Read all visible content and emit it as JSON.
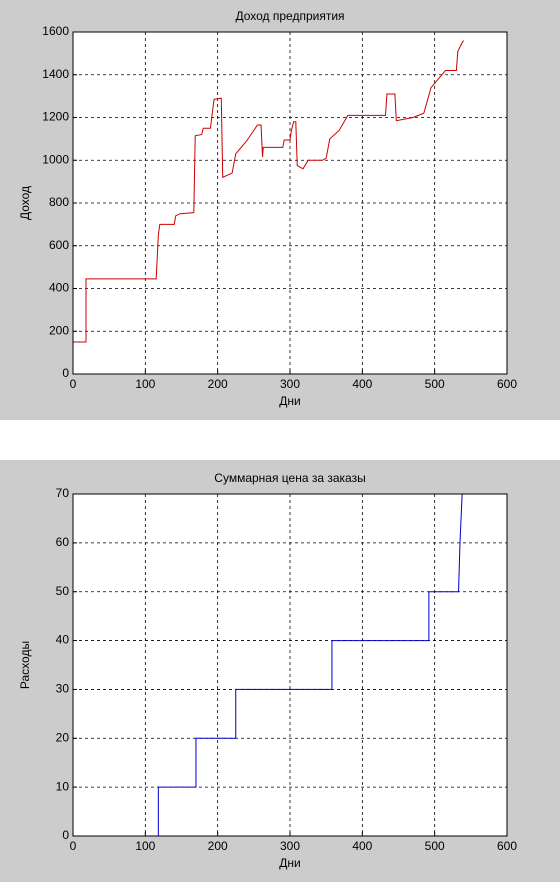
{
  "chart_data": [
    {
      "type": "line",
      "title": "Доход предприятия",
      "xlabel": "Дни",
      "ylabel": "Доход",
      "color": "#cc0000",
      "grid": true,
      "xlim": [
        0,
        600
      ],
      "xticks": [
        0,
        100,
        200,
        300,
        400,
        500,
        600
      ],
      "ylim": [
        0,
        1600
      ],
      "yticks": [
        0,
        200,
        400,
        600,
        800,
        1000,
        1200,
        1400,
        1600
      ],
      "x": [
        0,
        18,
        18,
        115,
        118,
        120,
        140,
        142,
        148,
        167,
        169,
        178,
        180,
        190,
        195,
        205,
        207,
        220,
        225,
        240,
        255,
        260,
        262,
        263,
        290,
        292,
        300,
        302,
        305,
        308,
        310,
        318,
        325,
        345,
        350,
        355,
        368,
        380,
        432,
        434,
        445,
        447,
        470,
        485,
        490,
        495,
        505,
        515,
        530,
        532,
        538,
        540
      ],
      "values": [
        150,
        150,
        445,
        445,
        650,
        700,
        700,
        740,
        750,
        755,
        1115,
        1120,
        1150,
        1150,
        1285,
        1290,
        920,
        940,
        1030,
        1090,
        1165,
        1165,
        1015,
        1060,
        1060,
        1095,
        1095,
        1140,
        1180,
        1180,
        975,
        960,
        1000,
        1000,
        1010,
        1100,
        1140,
        1210,
        1210,
        1310,
        1310,
        1185,
        1200,
        1220,
        1280,
        1340,
        1380,
        1420,
        1420,
        1510,
        1550,
        1560
      ]
    },
    {
      "type": "line",
      "title": "Суммарная цена за заказы",
      "xlabel": "Дни",
      "ylabel": "Расходы",
      "color": "#0000cc",
      "grid": true,
      "xlim": [
        0,
        600
      ],
      "xticks": [
        0,
        100,
        200,
        300,
        400,
        500,
        600
      ],
      "ylim": [
        0,
        70
      ],
      "yticks": [
        0,
        10,
        20,
        30,
        40,
        50,
        60,
        70
      ],
      "x": [
        0,
        118,
        118,
        170,
        170,
        225,
        225,
        358,
        358,
        492,
        492,
        533,
        535,
        538,
        540
      ],
      "values": [
        0,
        0,
        10,
        10,
        20,
        20,
        30,
        30,
        40,
        40,
        50,
        50,
        60,
        70,
        70
      ]
    }
  ]
}
